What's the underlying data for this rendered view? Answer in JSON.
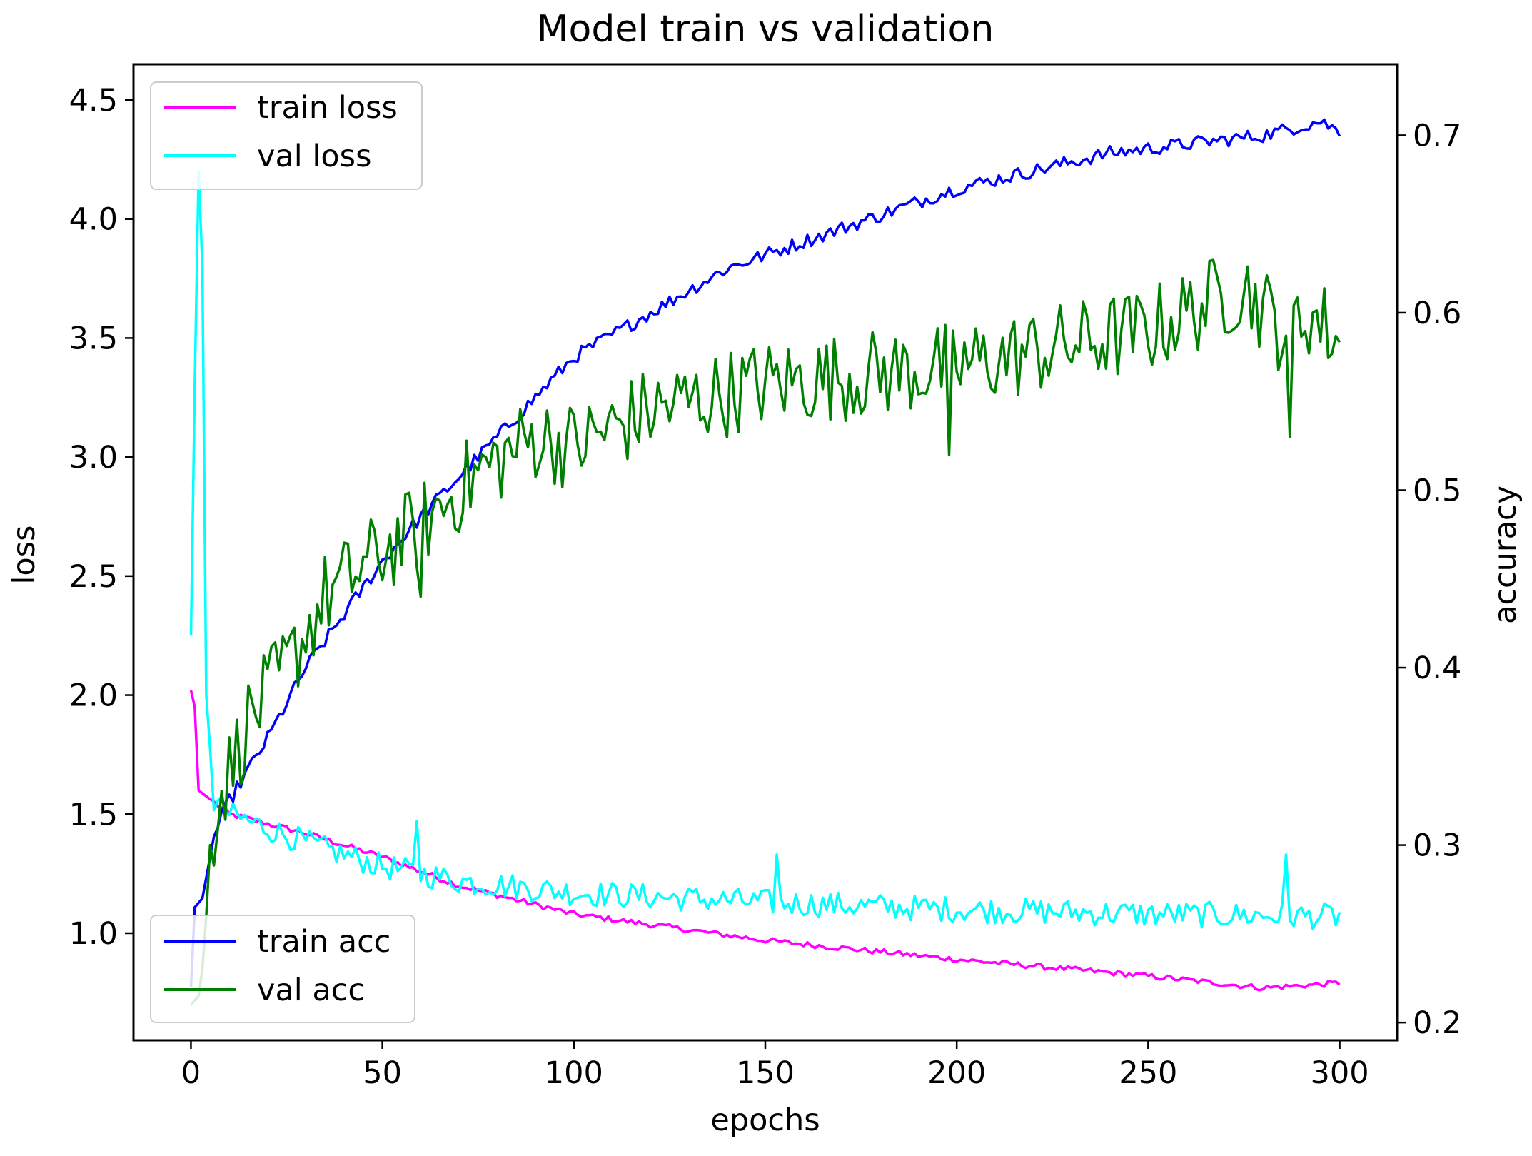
{
  "chart_data": {
    "type": "line",
    "title": "Model train vs validation",
    "xlabel": "epochs",
    "ylabel_left": "loss",
    "ylabel_right": "accuracy",
    "xlim": [
      -15,
      315
    ],
    "ylim_left": [
      0.55,
      4.65
    ],
    "ylim_right": [
      0.19,
      0.74
    ],
    "x_ticks": [
      0,
      50,
      100,
      150,
      200,
      250,
      300
    ],
    "y_ticks_left": [
      1.0,
      1.5,
      2.0,
      2.5,
      3.0,
      3.5,
      4.0,
      4.5
    ],
    "y_ticks_right": [
      0.2,
      0.3,
      0.4,
      0.5,
      0.6,
      0.7
    ],
    "grid": false,
    "legends": [
      {
        "placement": "upper-left",
        "entries": [
          "train loss",
          "val loss"
        ]
      },
      {
        "placement": "lower-left",
        "entries": [
          "train acc",
          "val acc"
        ]
      }
    ],
    "epochs": 300,
    "series": [
      {
        "name": "train loss",
        "axis": "left",
        "color": "#ff00ff",
        "line_width": 3.5,
        "noise": 0.012,
        "points": [
          [
            0,
            2.02
          ],
          [
            1,
            1.95
          ],
          [
            2,
            1.6
          ],
          [
            10,
            1.5
          ],
          [
            30,
            1.42
          ],
          [
            50,
            1.32
          ],
          [
            70,
            1.2
          ],
          [
            100,
            1.08
          ],
          [
            150,
            0.97
          ],
          [
            200,
            0.89
          ],
          [
            250,
            0.82
          ],
          [
            280,
            0.77
          ],
          [
            300,
            0.79
          ]
        ]
      },
      {
        "name": "val loss",
        "axis": "left",
        "color": "#00ffff",
        "line_width": 3.5,
        "noise": 0.055,
        "points": [
          [
            0,
            2.25
          ],
          [
            1,
            3.3
          ],
          [
            2,
            4.2
          ],
          [
            3,
            3.8
          ],
          [
            4,
            2.0
          ],
          [
            6,
            1.55
          ],
          [
            10,
            1.5
          ],
          [
            30,
            1.38
          ],
          [
            50,
            1.28
          ],
          [
            70,
            1.22
          ],
          [
            100,
            1.17
          ],
          [
            150,
            1.13
          ],
          [
            200,
            1.1
          ],
          [
            250,
            1.08
          ],
          [
            300,
            1.07
          ]
        ],
        "spikes": [
          [
            59,
            1.47
          ],
          [
            153,
            1.33
          ],
          [
            286,
            1.33
          ]
        ]
      },
      {
        "name": "train acc",
        "axis": "right",
        "color": "#0000ff",
        "line_width": 3.5,
        "noise": 0.004,
        "points": [
          [
            0,
            0.22
          ],
          [
            1,
            0.265
          ],
          [
            3,
            0.27
          ],
          [
            6,
            0.305
          ],
          [
            10,
            0.325
          ],
          [
            20,
            0.36
          ],
          [
            30,
            0.4
          ],
          [
            40,
            0.43
          ],
          [
            50,
            0.46
          ],
          [
            60,
            0.485
          ],
          [
            80,
            0.53
          ],
          [
            100,
            0.575
          ],
          [
            120,
            0.6
          ],
          [
            140,
            0.625
          ],
          [
            160,
            0.64
          ],
          [
            180,
            0.655
          ],
          [
            200,
            0.67
          ],
          [
            220,
            0.68
          ],
          [
            240,
            0.69
          ],
          [
            260,
            0.695
          ],
          [
            280,
            0.7
          ],
          [
            295,
            0.708
          ],
          [
            300,
            0.702
          ]
        ]
      },
      {
        "name": "val acc",
        "axis": "right",
        "color": "#008000",
        "line_width": 3.5,
        "noise": 0.018,
        "points": [
          [
            0,
            0.21
          ],
          [
            2,
            0.215
          ],
          [
            3,
            0.23
          ],
          [
            4,
            0.26
          ],
          [
            5,
            0.3
          ],
          [
            8,
            0.33
          ],
          [
            15,
            0.37
          ],
          [
            25,
            0.4
          ],
          [
            35,
            0.44
          ],
          [
            50,
            0.465
          ],
          [
            60,
            0.48
          ],
          [
            75,
            0.51
          ],
          [
            90,
            0.53
          ],
          [
            100,
            0.525
          ],
          [
            120,
            0.545
          ],
          [
            150,
            0.56
          ],
          [
            200,
            0.57
          ],
          [
            250,
            0.59
          ],
          [
            275,
            0.615
          ],
          [
            285,
            0.59
          ],
          [
            292,
            0.6
          ],
          [
            300,
            0.585
          ]
        ],
        "dips": [
          [
            287,
            0.53
          ],
          [
            198,
            0.52
          ],
          [
            60,
            0.44
          ]
        ]
      }
    ]
  }
}
